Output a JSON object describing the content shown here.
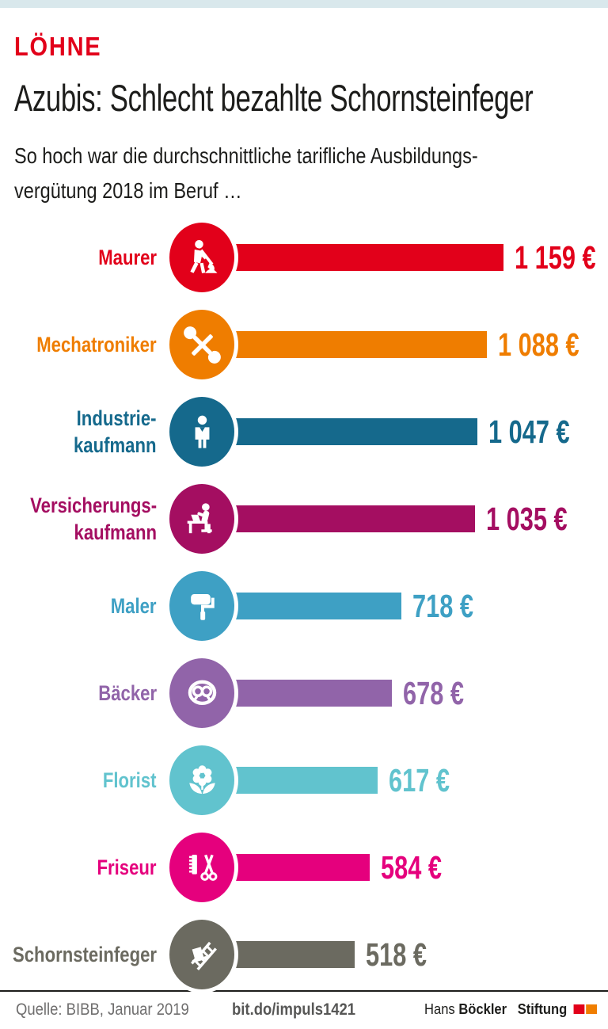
{
  "page": {
    "kicker": "LÖHNE",
    "title": "Azubis: Schlecht bezahlte Schornsteinfeger",
    "subtitle_lines": [
      "So hoch war die durchschnittliche tarifliche Ausbildungs-",
      "vergütung 2018 im Beruf …"
    ]
  },
  "chart_data": {
    "type": "bar",
    "orientation": "horizontal",
    "unit": "€",
    "year": "2018",
    "max_value": 1159,
    "legend": "none",
    "rows": [
      {
        "label_lines": [
          "Maurer"
        ],
        "value": 1159,
        "value_label": "1 159 €",
        "color": "#e2001a",
        "icon": "construction-worker-icon"
      },
      {
        "label_lines": [
          "Mechatroniker"
        ],
        "value": 1088,
        "value_label": "1 088 €",
        "color": "#ef7d00",
        "icon": "wrench-screwdriver-icon"
      },
      {
        "label_lines": [
          "Industrie-",
          "kaufmann"
        ],
        "value": 1047,
        "value_label": "1 047 €",
        "color": "#15698c",
        "icon": "businessman-icon"
      },
      {
        "label_lines": [
          "Versicherungs-",
          "kaufmann"
        ],
        "value": 1035,
        "value_label": "1 035 €",
        "color": "#a40e61",
        "icon": "office-desk-icon"
      },
      {
        "label_lines": [
          "Maler"
        ],
        "value": 718,
        "value_label": "718 €",
        "color": "#3ea0c4",
        "icon": "paint-roller-icon"
      },
      {
        "label_lines": [
          "Bäcker"
        ],
        "value": 678,
        "value_label": "678 €",
        "color": "#9164a9",
        "icon": "pretzel-icon"
      },
      {
        "label_lines": [
          "Florist"
        ],
        "value": 617,
        "value_label": "617 €",
        "color": "#61c3ce",
        "icon": "flower-icon"
      },
      {
        "label_lines": [
          "Friseur"
        ],
        "value": 584,
        "value_label": "584 €",
        "color": "#e5007d",
        "icon": "comb-scissors-icon"
      },
      {
        "label_lines": [
          "Schornsteinfeger"
        ],
        "value": 518,
        "value_label": "518 €",
        "color": "#6b6a60",
        "icon": "chimney-sweep-icon"
      }
    ]
  },
  "footer": {
    "source": "Quelle: BIBB, Januar 2019",
    "link": "bit.do/impuls1421",
    "logo": {
      "line1_regular": "Hans",
      "line1_bold": "Böckler",
      "line2_bold": "Stiftung",
      "flag_colors": [
        "#e2001a",
        "#f07e00"
      ]
    }
  },
  "colors": {
    "banner": "#d9e8ec",
    "kicker_red": "#e2001a",
    "text": "#1d1d1b"
  }
}
